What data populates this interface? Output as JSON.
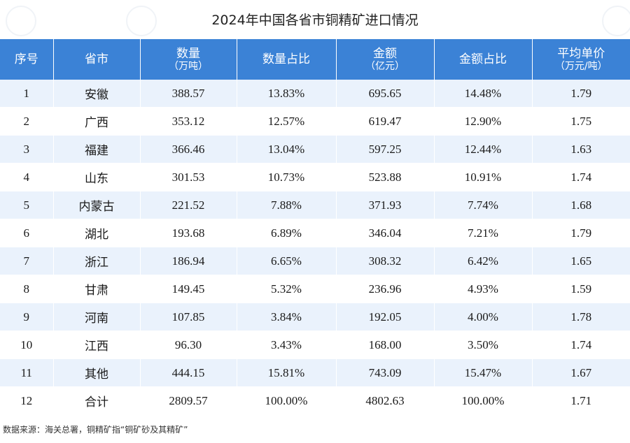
{
  "title": "2024年中国各省市铜精矿进口情况",
  "headers": [
    {
      "label": "序号",
      "unit": ""
    },
    {
      "label": "省市",
      "unit": ""
    },
    {
      "label": "数量",
      "unit": "（万吨）"
    },
    {
      "label": "数量占比",
      "unit": ""
    },
    {
      "label": "金额",
      "unit": "（亿元）"
    },
    {
      "label": "金额占比",
      "unit": ""
    },
    {
      "label": "平均单价",
      "unit": "（万元/吨）"
    }
  ],
  "rows": [
    [
      "1",
      "安徽",
      "388.57",
      "13.83%",
      "695.65",
      "14.48%",
      "1.79"
    ],
    [
      "2",
      "广西",
      "353.12",
      "12.57%",
      "619.47",
      "12.90%",
      "1.75"
    ],
    [
      "3",
      "福建",
      "366.46",
      "13.04%",
      "597.25",
      "12.44%",
      "1.63"
    ],
    [
      "4",
      "山东",
      "301.53",
      "10.73%",
      "523.88",
      "10.91%",
      "1.74"
    ],
    [
      "5",
      "内蒙古",
      "221.52",
      "7.88%",
      "371.93",
      "7.74%",
      "1.68"
    ],
    [
      "6",
      "湖北",
      "193.68",
      "6.89%",
      "346.04",
      "7.21%",
      "1.79"
    ],
    [
      "7",
      "浙江",
      "186.94",
      "6.65%",
      "308.32",
      "6.42%",
      "1.65"
    ],
    [
      "8",
      "甘肃",
      "149.45",
      "5.32%",
      "236.96",
      "4.93%",
      "1.59"
    ],
    [
      "9",
      "河南",
      "107.85",
      "3.84%",
      "192.05",
      "4.00%",
      "1.78"
    ],
    [
      "10",
      "江西",
      "96.30",
      "3.43%",
      "168.00",
      "3.50%",
      "1.74"
    ],
    [
      "11",
      "其他",
      "444.15",
      "15.81%",
      "743.09",
      "15.47%",
      "1.67"
    ],
    [
      "12",
      "合计",
      "2809.57",
      "100.00%",
      "4802.63",
      "100.00%",
      "1.71"
    ]
  ],
  "source": "数据来源：海关总署，铜精矿指“铜矿砂及其精矿”",
  "colors": {
    "header_bg": "#3b82d6",
    "row_alt": "#eaf2fc"
  }
}
